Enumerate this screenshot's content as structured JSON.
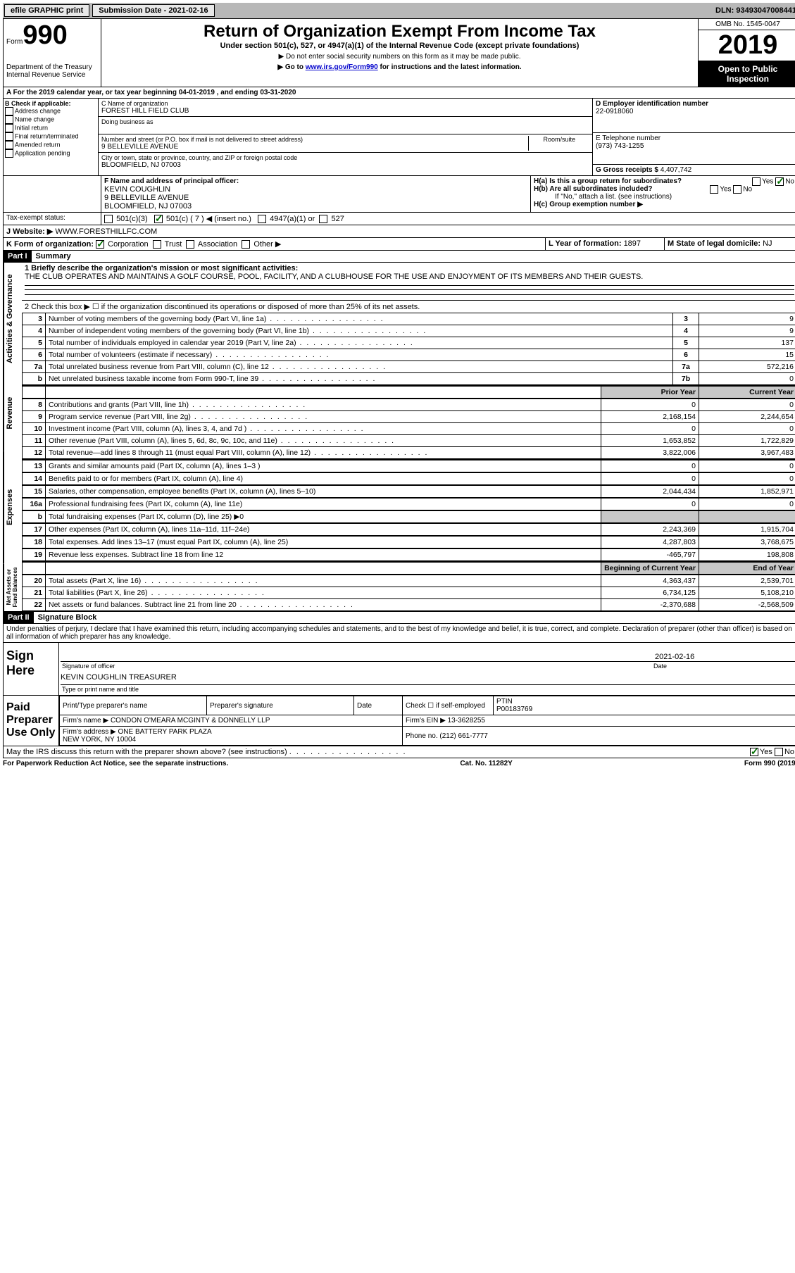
{
  "top": {
    "efile": "efile GRAPHIC print",
    "sub_label": "Submission Date - 2021-02-16",
    "dln": "DLN: 93493047008441"
  },
  "header": {
    "form_word": "Form",
    "form_no": "990",
    "dept": "Department of the Treasury\nInternal Revenue Service",
    "title": "Return of Organization Exempt From Income Tax",
    "subtitle": "Under section 501(c), 527, or 4947(a)(1) of the Internal Revenue Code (except private foundations)",
    "note1": "▶ Do not enter social security numbers on this form as it may be made public.",
    "note2_pre": "▶ Go to ",
    "note2_link": "www.irs.gov/Form990",
    "note2_post": " for instructions and the latest information.",
    "omb": "OMB No. 1545-0047",
    "year": "2019",
    "open": "Open to Public Inspection"
  },
  "lineA": "A For the 2019 calendar year, or tax year beginning 04-01-2019    , and ending 03-31-2020",
  "boxB": {
    "label": "B Check if applicable:",
    "items": [
      "Address change",
      "Name change",
      "Initial return",
      "Final return/terminated",
      "Amended return",
      "Application pending"
    ]
  },
  "boxC": {
    "name_label": "C Name of organization",
    "name": "FOREST HILL FIELD CLUB",
    "dba_label": "Doing business as",
    "addr_label": "Number and street (or P.O. box if mail is not delivered to street address)",
    "room_label": "Room/suite",
    "addr": "9 BELLEVILLE AVENUE",
    "city_label": "City or town, state or province, country, and ZIP or foreign postal code",
    "city": "BLOOMFIELD, NJ  07003"
  },
  "boxD": {
    "label": "D Employer identification number",
    "val": "22-0918060"
  },
  "boxE": {
    "label": "E Telephone number",
    "val": "(973) 743-1255"
  },
  "boxG": {
    "label": "G Gross receipts $ ",
    "val": "4,407,742"
  },
  "boxF": {
    "label": "F  Name and address of principal officer:",
    "name": "KEVIN COUGHLIN",
    "addr1": "9 BELLEVILLE AVENUE",
    "addr2": "BLOOMFIELD, NJ  07003"
  },
  "boxH": {
    "a": "H(a)  Is this a group return for subordinates?",
    "b": "H(b)  Are all subordinates included?",
    "note": "If \"No,\" attach a list. (see instructions)",
    "c": "H(c)  Group exemption number ▶"
  },
  "boxI": {
    "label": "Tax-exempt status:",
    "opts": [
      "501(c)(3)",
      "501(c) ( 7 ) ◀ (insert no.)",
      "4947(a)(1) or",
      "527"
    ]
  },
  "boxJ": {
    "label": "J   Website: ▶",
    "val": "WWW.FORESTHILLFC.COM"
  },
  "boxK": {
    "label": "K Form of organization:",
    "opts": [
      "Corporation",
      "Trust",
      "Association",
      "Other ▶"
    ]
  },
  "boxL": {
    "label": "L Year of formation: ",
    "val": "1897"
  },
  "boxM": {
    "label": "M State of legal domicile: ",
    "val": "NJ"
  },
  "part1": {
    "header": "Part I",
    "title": "Summary",
    "line1_label": "1  Briefly describe the organization's mission or most significant activities:",
    "line1_text": "THE CLUB OPERATES AND MAINTAINS A GOLF COURSE, POOL, FACILITY, AND A CLUBHOUSE FOR THE USE AND ENJOYMENT OF ITS MEMBERS AND THEIR GUESTS.",
    "line2": "2    Check this box ▶ ☐  if the organization discontinued its operations or disposed of more than 25% of its net assets.",
    "prior": "Prior Year",
    "current": "Current Year",
    "begin": "Beginning of Current Year",
    "end": "End of Year",
    "rows_gov": [
      {
        "n": "3",
        "t": "Number of voting members of the governing body (Part VI, line 1a)",
        "b": "3",
        "v": "9"
      },
      {
        "n": "4",
        "t": "Number of independent voting members of the governing body (Part VI, line 1b)",
        "b": "4",
        "v": "9"
      },
      {
        "n": "5",
        "t": "Total number of individuals employed in calendar year 2019 (Part V, line 2a)",
        "b": "5",
        "v": "137"
      },
      {
        "n": "6",
        "t": "Total number of volunteers (estimate if necessary)",
        "b": "6",
        "v": "15"
      },
      {
        "n": "7a",
        "t": "Total unrelated business revenue from Part VIII, column (C), line 12",
        "b": "7a",
        "v": "572,216"
      },
      {
        "n": "b",
        "t": "Net unrelated business taxable income from Form 990-T, line 39",
        "b": "7b",
        "v": "0"
      }
    ],
    "rows_rev": [
      {
        "n": "8",
        "t": "Contributions and grants (Part VIII, line 1h)",
        "p": "0",
        "c": "0"
      },
      {
        "n": "9",
        "t": "Program service revenue (Part VIII, line 2g)",
        "p": "2,168,154",
        "c": "2,244,654"
      },
      {
        "n": "10",
        "t": "Investment income (Part VIII, column (A), lines 3, 4, and 7d )",
        "p": "0",
        "c": "0"
      },
      {
        "n": "11",
        "t": "Other revenue (Part VIII, column (A), lines 5, 6d, 8c, 9c, 10c, and 11e)",
        "p": "1,653,852",
        "c": "1,722,829"
      },
      {
        "n": "12",
        "t": "Total revenue—add lines 8 through 11 (must equal Part VIII, column (A), line 12)",
        "p": "3,822,006",
        "c": "3,967,483"
      }
    ],
    "rows_exp": [
      {
        "n": "13",
        "t": "Grants and similar amounts paid (Part IX, column (A), lines 1–3 )",
        "p": "0",
        "c": "0"
      },
      {
        "n": "14",
        "t": "Benefits paid to or for members (Part IX, column (A), line 4)",
        "p": "0",
        "c": "0"
      },
      {
        "n": "15",
        "t": "Salaries, other compensation, employee benefits (Part IX, column (A), lines 5–10)",
        "p": "2,044,434",
        "c": "1,852,971"
      },
      {
        "n": "16a",
        "t": "Professional fundraising fees (Part IX, column (A), line 11e)",
        "p": "0",
        "c": "0"
      },
      {
        "n": "b",
        "t": "Total fundraising expenses (Part IX, column (D), line 25) ▶0",
        "p": "",
        "c": "",
        "shaded": true
      },
      {
        "n": "17",
        "t": "Other expenses (Part IX, column (A), lines 11a–11d, 11f–24e)",
        "p": "2,243,369",
        "c": "1,915,704"
      },
      {
        "n": "18",
        "t": "Total expenses. Add lines 13–17 (must equal Part IX, column (A), line 25)",
        "p": "4,287,803",
        "c": "3,768,675"
      },
      {
        "n": "19",
        "t": "Revenue less expenses. Subtract line 18 from line 12",
        "p": "-465,797",
        "c": "198,808"
      }
    ],
    "rows_net": [
      {
        "n": "20",
        "t": "Total assets (Part X, line 16)",
        "p": "4,363,437",
        "c": "2,539,701"
      },
      {
        "n": "21",
        "t": "Total liabilities (Part X, line 26)",
        "p": "6,734,125",
        "c": "5,108,210"
      },
      {
        "n": "22",
        "t": "Net assets or fund balances. Subtract line 21 from line 20",
        "p": "-2,370,688",
        "c": "-2,568,509"
      }
    ],
    "vlabel_gov": "Activities & Governance",
    "vlabel_rev": "Revenue",
    "vlabel_exp": "Expenses",
    "vlabel_net": "Net Assets or Fund Balances"
  },
  "part2": {
    "header": "Part II",
    "title": "Signature Block",
    "penalty": "Under penalties of perjury, I declare that I have examined this return, including accompanying schedules and statements, and to the best of my knowledge and belief, it is true, correct, and complete. Declaration of preparer (other than officer) is based on all information of which preparer has any knowledge.",
    "sign_here": "Sign Here",
    "sig_officer": "Signature of officer",
    "date_label": "Date",
    "sig_date": "2021-02-16",
    "name_title": "KEVIN COUGHLIN  TREASURER",
    "type_name": "Type or print name and title",
    "paid": "Paid Preparer Use Only",
    "prep_name_label": "Print/Type preparer's name",
    "prep_sig_label": "Preparer's signature",
    "check_self": "Check ☐ if self-employed",
    "ptin_label": "PTIN",
    "ptin": "P00183769",
    "firm_name_label": "Firm's name    ▶",
    "firm_name": "CONDON O'MEARA MCGINTY & DONNELLY LLP",
    "firm_ein_label": "Firm's EIN ▶",
    "firm_ein": "13-3628255",
    "firm_addr_label": "Firm's address ▶",
    "firm_addr": "ONE BATTERY PARK PLAZA\nNEW YORK, NY  10004",
    "phone_label": "Phone no.",
    "phone": "(212) 661-7777",
    "discuss": "May the IRS discuss this return with the preparer shown above? (see instructions)"
  },
  "footer": {
    "left": "For Paperwork Reduction Act Notice, see the separate instructions.",
    "mid": "Cat. No. 11282Y",
    "right": "Form 990 (2019)"
  }
}
